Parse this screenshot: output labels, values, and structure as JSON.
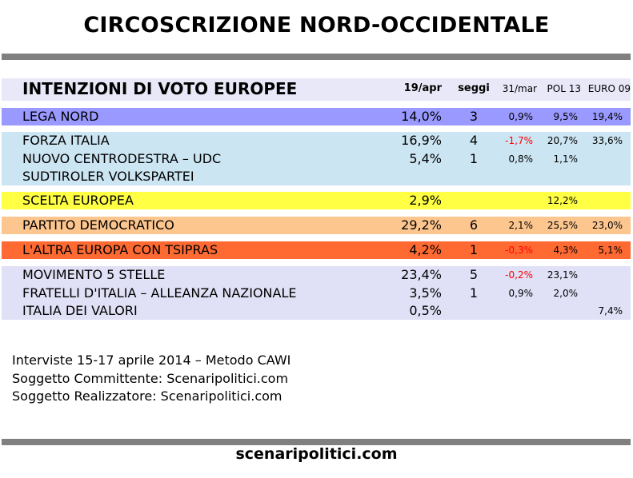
{
  "title": "CIRCOSCRIZIONE NORD-OCCIDENTALE",
  "table": {
    "heading": "INTENZIONI DI VOTO EUROPEE",
    "columns": {
      "current": "19/apr",
      "seats": "seggi",
      "delta": "31/mar",
      "pol13": "POL 13",
      "euro09": "EURO 09"
    },
    "groups": [
      {
        "color": "#9999ff",
        "rows": [
          {
            "name": "LEGA NORD",
            "pct": "14,0%",
            "seats": "3",
            "delta": "0,9%",
            "delta_negative": false,
            "pol13": "9,5%",
            "euro09": "19,4%"
          }
        ]
      },
      {
        "color": "#cce5f2",
        "rows": [
          {
            "name": "FORZA ITALIA",
            "pct": "16,9%",
            "seats": "4",
            "delta": "-1,7%",
            "delta_negative": true,
            "pol13": "20,7%",
            "euro09": "33,6%"
          },
          {
            "name": "NUOVO CENTRODESTRA – UDC",
            "pct": "5,4%",
            "seats": "1",
            "delta": "0,8%",
            "delta_negative": false,
            "pol13": "1,1%",
            "euro09": ""
          },
          {
            "name": "SUDTIROLER VOLKSPARTEI",
            "pct": "",
            "seats": "",
            "delta": "",
            "delta_negative": false,
            "pol13": "",
            "euro09": ""
          }
        ]
      },
      {
        "color": "#ffff44",
        "rows": [
          {
            "name": "SCELTA EUROPEA",
            "pct": "2,9%",
            "seats": "",
            "delta": "",
            "delta_negative": false,
            "pol13": "12,2%",
            "euro09": ""
          }
        ]
      },
      {
        "color": "#fdc68f",
        "rows": [
          {
            "name": "PARTITO DEMOCRATICO",
            "pct": "29,2%",
            "seats": "6",
            "delta": "2,1%",
            "delta_negative": false,
            "pol13": "25,5%",
            "euro09": "23,0%"
          }
        ]
      },
      {
        "color": "#ff6a33",
        "rows": [
          {
            "name": "L'ALTRA EUROPA CON TSIPRAS",
            "pct": "4,2%",
            "seats": "1",
            "delta": "-0,3%",
            "delta_negative": true,
            "pol13": "4,3%",
            "euro09": "5,1%"
          }
        ]
      },
      {
        "color": "#e0e0f6",
        "rows": [
          {
            "name": "MOVIMENTO 5 STELLE",
            "pct": "23,4%",
            "seats": "5",
            "delta": "-0,2%",
            "delta_negative": true,
            "pol13": "23,1%",
            "euro09": ""
          },
          {
            "name": "FRATELLI D'ITALIA – ALLEANZA NAZIONALE",
            "pct": "3,5%",
            "seats": "1",
            "delta": "0,9%",
            "delta_negative": false,
            "pol13": "2,0%",
            "euro09": ""
          },
          {
            "name": "ITALIA DEI VALORI",
            "pct": "0,5%",
            "seats": "",
            "delta": "",
            "delta_negative": false,
            "pol13": "",
            "euro09": "7,4%"
          }
        ]
      }
    ]
  },
  "footer": {
    "line1": "Interviste 15-17 aprile 2014 – Metodo CAWI",
    "line2": "Soggetto Committente: Scenaripolitici.com",
    "line3": "Soggetto Realizzatore: Scenaripolitici.com"
  },
  "site": "scenaripolitici.com",
  "colors": {
    "header_bg": "#e8e8f8",
    "rule": "#808080",
    "negative": "#ff0000"
  }
}
